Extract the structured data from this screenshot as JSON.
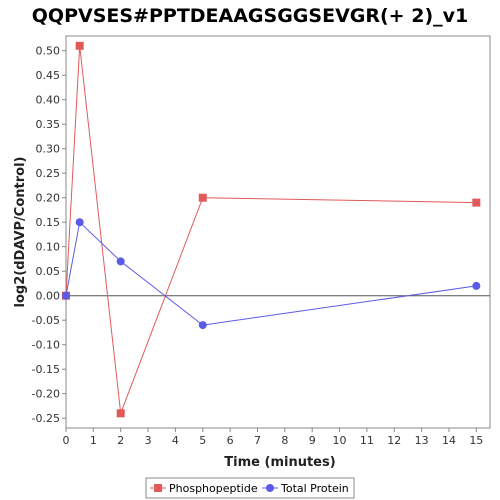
{
  "chart_data": {
    "type": "line",
    "title": "QQPVSES#PPTDEAAGSGGSEVGR(+ 2)_v1",
    "xlabel": "Time (minutes)",
    "ylabel": "log2(dDAVP/Control)",
    "xlim": [
      0,
      15.5
    ],
    "ylim": [
      -0.27,
      0.53
    ],
    "xticks": [
      0,
      1,
      2,
      3,
      4,
      5,
      6,
      7,
      8,
      9,
      10,
      11,
      12,
      13,
      14,
      15
    ],
    "yticks": [
      -0.25,
      -0.2,
      -0.15,
      -0.1,
      -0.05,
      0.0,
      0.05,
      0.1,
      0.15,
      0.2,
      0.25,
      0.3,
      0.35,
      0.4,
      0.45,
      0.5
    ],
    "ytick_labels": [
      "-0.25",
      "-0.20",
      "-0.15",
      "-0.10",
      "-0.05",
      "0.00",
      "0.05",
      "0.10",
      "0.15",
      "0.20",
      "0.25",
      "0.30",
      "0.35",
      "0.40",
      "0.45",
      "0.50"
    ],
    "zero_line": true,
    "grid": false,
    "legend_position": "bottom-center",
    "series": [
      {
        "name": "Phosphopeptide",
        "color": "#e05a5a",
        "marker": "square",
        "x": [
          0,
          0.5,
          2,
          5,
          15
        ],
        "y": [
          0.0,
          0.51,
          -0.24,
          0.2,
          0.19
        ]
      },
      {
        "name": "Total Protein",
        "color": "#5a5ae6",
        "marker": "circle",
        "x": [
          0,
          0.5,
          2,
          5,
          15
        ],
        "y": [
          0.0,
          0.15,
          0.07,
          -0.06,
          0.02
        ]
      }
    ]
  }
}
